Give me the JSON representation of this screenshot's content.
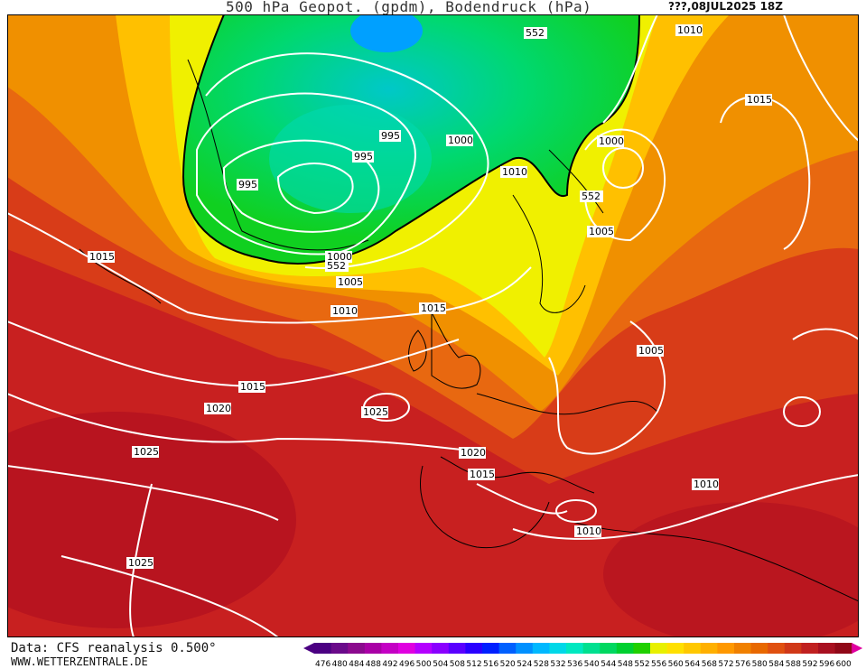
{
  "header": {
    "title": "500 hPa Geopot. (gpdm), Bodendruck (hPa)",
    "datestamp": "???,08JUL2025 18Z"
  },
  "footer": {
    "data_source": "Data: CFS reanalysis 0.500°",
    "website": "WWW.WETTERZENTRALE.DE"
  },
  "legend": {
    "levels": [
      476,
      480,
      484,
      488,
      492,
      496,
      500,
      504,
      508,
      512,
      516,
      520,
      524,
      528,
      532,
      536,
      540,
      544,
      548,
      552,
      556,
      560,
      564,
      568,
      572,
      576,
      580,
      584,
      588,
      592,
      596,
      600
    ],
    "colors": [
      "#4b0082",
      "#6a0a8a",
      "#8b0a8e",
      "#a900a6",
      "#c400c4",
      "#e000e0",
      "#b400ff",
      "#8a00ff",
      "#5a00ff",
      "#2a00ff",
      "#0020ff",
      "#0060ff",
      "#0090ff",
      "#00b8ff",
      "#00d8e8",
      "#00e8c0",
      "#00e090",
      "#00d860",
      "#00d030",
      "#20d000",
      "#e8f000",
      "#ffe000",
      "#ffc800",
      "#ffb000",
      "#ff9800",
      "#f08000",
      "#e86800",
      "#e05010",
      "#d03818",
      "#c02020",
      "#a81020",
      "#900818"
    ]
  },
  "isobar_labels": [
    "552",
    "1010",
    "1015",
    "995",
    "1000",
    "995",
    "995",
    "1000",
    "1010",
    "552",
    "1005",
    "1015",
    "1000",
    "552",
    "1005",
    "1010",
    "1015",
    "1005",
    "1015",
    "1020",
    "1025",
    "1025",
    "1020",
    "1015",
    "1010",
    "1010",
    "1025",
    "1015"
  ]
}
